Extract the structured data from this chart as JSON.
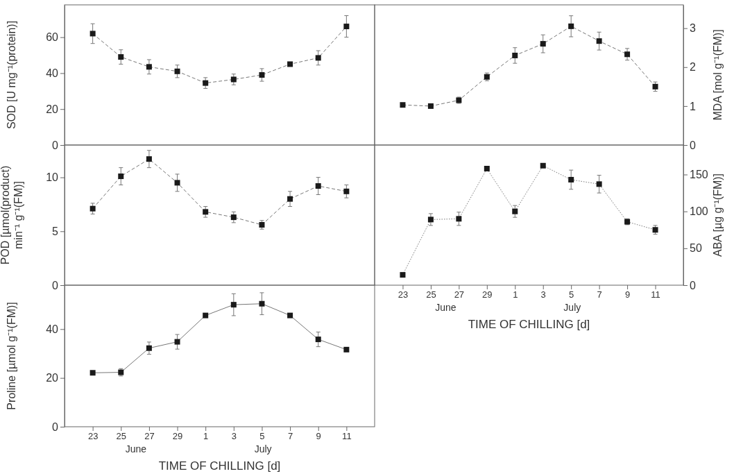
{
  "chart_data": [
    {
      "type": "line",
      "ylabel": "SOD [U mg⁻¹(protein)]",
      "categories": [
        "23",
        "25",
        "27",
        "29",
        "1",
        "3",
        "5",
        "7",
        "9",
        "11"
      ],
      "ylim": [
        0,
        78
      ],
      "yticks": [
        0,
        20,
        40,
        60
      ],
      "tick_labels": "y",
      "marker": "square",
      "line_style": "dashed",
      "series": [
        {
          "color": "#1a1a1a",
          "values": [
            62,
            49,
            43.5,
            41,
            34.5,
            36.5,
            39,
            45,
            48.5,
            66
          ],
          "errors": [
            5.5,
            4,
            4,
            3.5,
            3,
            3,
            3.5,
            null,
            4,
            6
          ]
        }
      ]
    },
    {
      "type": "line",
      "ylabel": "MDA [mol g⁻¹(FM)]",
      "categories": [
        "23",
        "25",
        "27",
        "29",
        "1",
        "3",
        "5",
        "7",
        "9",
        "11"
      ],
      "ylim": [
        0,
        3.6
      ],
      "yticks": [
        0,
        1,
        2,
        3
      ],
      "tick_labels": "y",
      "marker": "square",
      "line_style": "dashed",
      "series": [
        {
          "color": "#1a1a1a",
          "values": [
            1.03,
            1.0,
            1.15,
            1.75,
            2.3,
            2.6,
            3.05,
            2.67,
            2.33,
            1.5
          ],
          "errors": [
            null,
            null,
            0.08,
            0.1,
            0.2,
            0.23,
            0.27,
            0.23,
            0.15,
            0.12
          ]
        }
      ]
    },
    {
      "type": "line",
      "ylabel": "POD [µmol(product)\nmin⁻¹ g⁻¹(FM)]",
      "categories": [
        "23",
        "25",
        "27",
        "29",
        "1",
        "3",
        "5",
        "7",
        "9",
        "11"
      ],
      "ylim": [
        0,
        13
      ],
      "yticks": [
        0,
        5,
        10
      ],
      "tick_labels": "y",
      "marker": "square",
      "line_style": "dashed",
      "series": [
        {
          "color": "#1a1a1a",
          "values": [
            7.1,
            10.1,
            11.7,
            9.5,
            6.8,
            6.3,
            5.6,
            8.0,
            9.2,
            8.7
          ],
          "errors": [
            0.5,
            0.8,
            0.8,
            0.8,
            0.5,
            0.5,
            0.4,
            0.7,
            0.8,
            0.6
          ]
        }
      ]
    },
    {
      "type": "line",
      "ylabel": "ABA [µg g⁻¹(FM)]",
      "xlabel": "TIME OF CHILLING [d]",
      "categories": [
        "23",
        "25",
        "27",
        "29",
        "1",
        "3",
        "5",
        "7",
        "9",
        "11"
      ],
      "ylim": [
        0,
        190
      ],
      "yticks": [
        0,
        50,
        100,
        150
      ],
      "marker": "square",
      "line_style": "dotted",
      "annotations": [
        "June",
        "July"
      ],
      "series": [
        {
          "color": "#1a1a1a",
          "values": [
            14,
            89,
            90,
            158,
            100,
            162,
            143,
            137,
            86,
            75
          ],
          "errors": [
            null,
            8,
            9,
            null,
            8,
            null,
            13,
            12,
            4,
            6
          ]
        }
      ]
    },
    {
      "type": "line",
      "ylabel": "Proline [µmol g⁻¹(FM)]",
      "xlabel": "TIME OF CHILLING [d]",
      "categories": [
        "23",
        "25",
        "27",
        "29",
        "1",
        "3",
        "5",
        "7",
        "9",
        "11"
      ],
      "ylim": [
        0,
        58
      ],
      "yticks": [
        0,
        20,
        40
      ],
      "marker": "square",
      "line_style": "solid",
      "annotations": [
        "June",
        "July"
      ],
      "series": [
        {
          "color": "#1a1a1a",
          "values": [
            22.1,
            22.3,
            32.2,
            34.8,
            45.6,
            50,
            50.4,
            45.6,
            35.8,
            31.6
          ],
          "errors": [
            0.3,
            1.5,
            2.5,
            3,
            0.5,
            4.5,
            4.5,
            0.5,
            3,
            0.5
          ]
        }
      ]
    }
  ]
}
